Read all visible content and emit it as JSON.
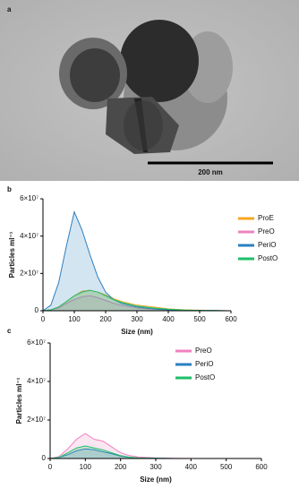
{
  "panel_a": {
    "label": "a",
    "scale_bar": "200 nm"
  },
  "chart_data": [
    {
      "type": "line",
      "panel_label": "b",
      "x_label": "Size (nm)",
      "y_label": "Particles ml⁻¹",
      "x": [
        0,
        25,
        50,
        75,
        100,
        125,
        150,
        175,
        200,
        225,
        250,
        300,
        350,
        400,
        450,
        500,
        550,
        600
      ],
      "xlim": [
        0,
        600
      ],
      "xticks": [
        0,
        100,
        200,
        300,
        400,
        500,
        600
      ],
      "ylim": [
        0,
        60000000
      ],
      "yticks": [
        0,
        {
          "value": 20000000,
          "label": "2×10⁷"
        },
        {
          "value": 40000000,
          "label": "4×10⁷"
        },
        {
          "value": 60000000,
          "label": "6×10⁷"
        }
      ],
      "series": [
        {
          "name": "ProE",
          "color": "#f5a623",
          "values": [
            0,
            500000,
            2000000,
            5000000,
            8000000,
            10500000,
            11000000,
            10000000,
            8500000,
            6500000,
            5000000,
            3000000,
            2000000,
            1000000,
            500000,
            300000,
            100000,
            0
          ]
        },
        {
          "name": "PreO",
          "color": "#ee82bf",
          "values": [
            0,
            500000,
            1500000,
            4000000,
            6000000,
            7500000,
            8000000,
            7000000,
            5500000,
            4000000,
            3000000,
            1500000,
            800000,
            400000,
            200000,
            100000,
            0,
            0
          ]
        },
        {
          "name": "PeriO",
          "color": "#2a7fc0",
          "values": [
            0,
            3000000,
            15000000,
            35000000,
            53000000,
            43000000,
            30000000,
            18000000,
            10000000,
            6000000,
            4000000,
            2000000,
            1000000,
            500000,
            300000,
            200000,
            100000,
            0
          ]
        },
        {
          "name": "PostO",
          "color": "#1fbf6a",
          "values": [
            0,
            500000,
            2000000,
            5000000,
            8000000,
            10000000,
            11000000,
            10000000,
            8000000,
            6000000,
            4500000,
            2500000,
            1500000,
            800000,
            400000,
            200000,
            100000,
            0
          ]
        }
      ]
    },
    {
      "type": "line",
      "panel_label": "c",
      "x_label": "Size (nm)",
      "y_label": "Particles ml⁻¹",
      "x": [
        0,
        25,
        50,
        75,
        100,
        125,
        150,
        175,
        200,
        225,
        250,
        300,
        350,
        400,
        450,
        500,
        550,
        600
      ],
      "xlim": [
        0,
        600
      ],
      "xticks": [
        0,
        100,
        200,
        300,
        400,
        500,
        600
      ],
      "ylim": [
        0,
        60000000
      ],
      "yticks": [
        0,
        {
          "value": 20000000,
          "label": "2×10⁷"
        },
        {
          "value": 40000000,
          "label": "4×10⁷"
        },
        {
          "value": 60000000,
          "label": "6×10⁷"
        }
      ],
      "series": [
        {
          "name": "PreO",
          "color": "#ee82bf",
          "values": [
            0,
            1000000,
            5000000,
            10000000,
            13000000,
            10000000,
            9000000,
            6000000,
            3000000,
            1500000,
            800000,
            300000,
            100000,
            0,
            0,
            0,
            0,
            0
          ]
        },
        {
          "name": "PeriO",
          "color": "#2a7fc0",
          "values": [
            0,
            500000,
            2000000,
            4000000,
            5000000,
            4500000,
            3500000,
            2500000,
            1200000,
            600000,
            300000,
            100000,
            0,
            0,
            0,
            0,
            0,
            0
          ]
        },
        {
          "name": "PostO",
          "color": "#1fbf6a",
          "values": [
            0,
            500000,
            3000000,
            5500000,
            6500000,
            5500000,
            4500000,
            3000000,
            1500000,
            700000,
            300000,
            100000,
            0,
            0,
            0,
            0,
            0,
            0
          ]
        }
      ]
    }
  ]
}
